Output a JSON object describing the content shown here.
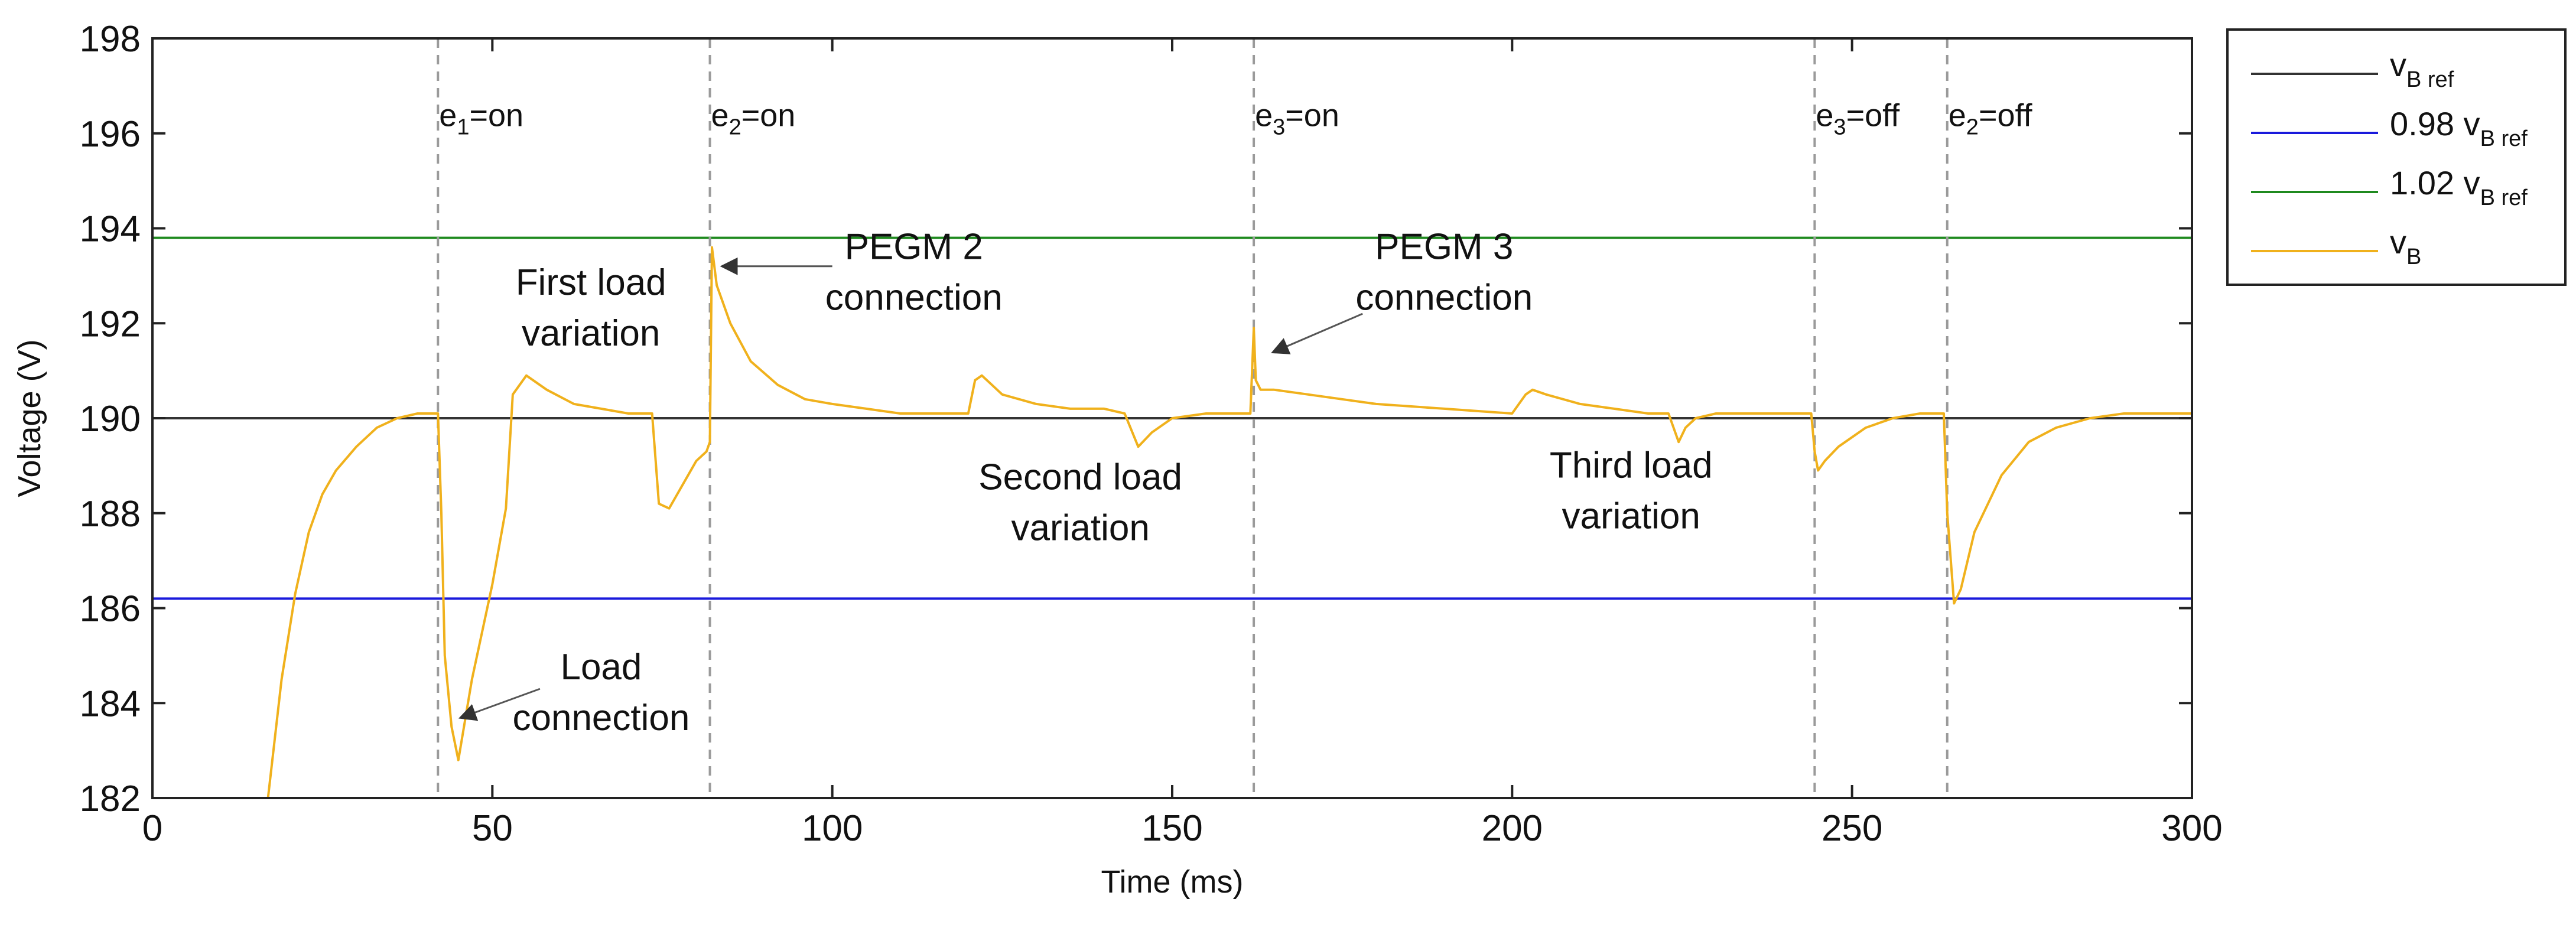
{
  "chart_data": {
    "type": "line",
    "title": "",
    "xlabel": "Time (ms)",
    "ylabel": "Voltage (V)",
    "xlim": [
      0,
      300
    ],
    "ylim": [
      182,
      198
    ],
    "xticks": [
      0,
      50,
      100,
      150,
      200,
      250,
      300
    ],
    "yticks": [
      182,
      184,
      186,
      188,
      190,
      192,
      194,
      196,
      198
    ],
    "grid": false,
    "legend_position": "outside-top-right",
    "series": [
      {
        "name": "vB ref",
        "label_main": "v",
        "label_sub": "B ref",
        "color": "#333333",
        "y_constant": 190
      },
      {
        "name": "0.98 vB ref",
        "label_main": "0.98 v",
        "label_sub": "B ref",
        "color": "#1a1adc",
        "y_constant": 186.2
      },
      {
        "name": "1.02 vB ref",
        "label_main": "1.02 v",
        "label_sub": "B ref",
        "color": "#1f8a1f",
        "y_constant": 193.8
      },
      {
        "name": "vB",
        "label_main": "v",
        "label_sub": "B",
        "color": "#f0b11c",
        "x": [
          17,
          19,
          21,
          23,
          25,
          27,
          30,
          33,
          36,
          39,
          42,
          42.5,
          43,
          44,
          45,
          47,
          50,
          52,
          53,
          55,
          58,
          62,
          66,
          70,
          73.5,
          74.5,
          76,
          78,
          80,
          81.5,
          82,
          82.3,
          83,
          85,
          88,
          92,
          96,
          100,
          105,
          110,
          115,
          120,
          121,
          122,
          125,
          130,
          135,
          140,
          143,
          145,
          147,
          150,
          155,
          160,
          161.5,
          162,
          162.3,
          163,
          165,
          170,
          180,
          190,
          200,
          202,
          203,
          205,
          210,
          215,
          220,
          223,
          224.5,
          225.5,
          227,
          230,
          235,
          240,
          244,
          244.5,
          245,
          246,
          248,
          252,
          256,
          260,
          263.5,
          264,
          265,
          266,
          268,
          272,
          276,
          280,
          285,
          290,
          295,
          300
        ],
        "y": [
          182,
          184.5,
          186.3,
          187.6,
          188.4,
          188.9,
          189.4,
          189.8,
          190.0,
          190.1,
          190.1,
          188.0,
          185.0,
          183.5,
          182.8,
          184.5,
          186.5,
          188.1,
          190.5,
          190.9,
          190.6,
          190.3,
          190.2,
          190.1,
          190.1,
          188.2,
          188.1,
          188.6,
          189.1,
          189.3,
          189.5,
          193.6,
          192.8,
          192.0,
          191.2,
          190.7,
          190.4,
          190.3,
          190.2,
          190.1,
          190.1,
          190.1,
          190.8,
          190.9,
          190.5,
          190.3,
          190.2,
          190.2,
          190.1,
          189.4,
          189.7,
          190.0,
          190.1,
          190.1,
          190.1,
          191.9,
          190.8,
          190.6,
          190.6,
          190.5,
          190.3,
          190.2,
          190.1,
          190.5,
          190.6,
          190.5,
          190.3,
          190.2,
          190.1,
          190.1,
          189.5,
          189.8,
          190.0,
          190.1,
          190.1,
          190.1,
          190.1,
          189.3,
          188.9,
          189.1,
          189.4,
          189.8,
          190.0,
          190.1,
          190.1,
          188.0,
          186.1,
          186.4,
          187.6,
          188.8,
          189.5,
          189.8,
          190.0,
          190.1,
          190.1,
          190.1
        ]
      }
    ],
    "event_lines": [
      {
        "x": 42,
        "base": "e",
        "sub": "1",
        "state": "=on"
      },
      {
        "x": 82,
        "base": "e",
        "sub": "2",
        "state": "=on"
      },
      {
        "x": 162,
        "base": "e",
        "sub": "3",
        "state": "=on"
      },
      {
        "x": 244.5,
        "base": "e",
        "sub": "3",
        "state": "=off"
      },
      {
        "x": 264,
        "base": "e",
        "sub": "2",
        "state": "=off"
      }
    ],
    "annotations": [
      {
        "lines": [
          "First load",
          "variation"
        ],
        "x": 64.5,
        "y": 192.6,
        "arrow": false
      },
      {
        "lines": [
          "PEGM 2",
          "connection"
        ],
        "x": 112,
        "y": 193.35,
        "arrow": true,
        "arrow_from": [
          100,
          193.2
        ],
        "arrow_to": [
          84,
          193.2
        ]
      },
      {
        "lines": [
          "PEGM 3",
          "connection"
        ],
        "x": 190,
        "y": 193.35,
        "arrow": true,
        "arrow_from": [
          178,
          192.2
        ],
        "arrow_to": [
          165,
          191.4
        ]
      },
      {
        "lines": [
          "Second load",
          "variation"
        ],
        "x": 136.5,
        "y": 188.5,
        "arrow": false
      },
      {
        "lines": [
          "Third load",
          "variation"
        ],
        "x": 217.5,
        "y": 188.75,
        "arrow": false
      },
      {
        "lines": [
          "Load",
          "connection"
        ],
        "x": 66,
        "y": 184.5,
        "arrow": true,
        "arrow_from": [
          57,
          184.3
        ],
        "arrow_to": [
          45.5,
          183.7
        ]
      }
    ]
  }
}
